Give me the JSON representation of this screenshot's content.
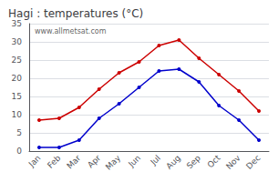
{
  "chart_data": {
    "type": "line",
    "title": "Hagi : temperatures (°C)",
    "categories": [
      "Jan",
      "Feb",
      "Mar",
      "Apr",
      "May",
      "Jun",
      "Jul",
      "Aug",
      "Sep",
      "Oct",
      "Nov",
      "Dec"
    ],
    "series": [
      {
        "color": "#cc0000",
        "marker": "circle",
        "line_style": "solid",
        "values": [
          8.5,
          9.0,
          12.0,
          17.0,
          21.5,
          24.5,
          29.0,
          30.5,
          25.5,
          21.0,
          16.5,
          11.0
        ]
      },
      {
        "color": "#0000cc",
        "marker": "circle",
        "line_style": "solid",
        "values": [
          1.0,
          1.0,
          3.0,
          9.0,
          13.0,
          17.5,
          22.0,
          22.5,
          19.0,
          12.5,
          8.5,
          3.0
        ]
      }
    ],
    "ylim": [
      0,
      35
    ],
    "yticks": [
      0,
      5,
      10,
      15,
      20,
      25,
      30,
      35
    ],
    "grid": true,
    "annotation": "www.allmetsat.com"
  }
}
